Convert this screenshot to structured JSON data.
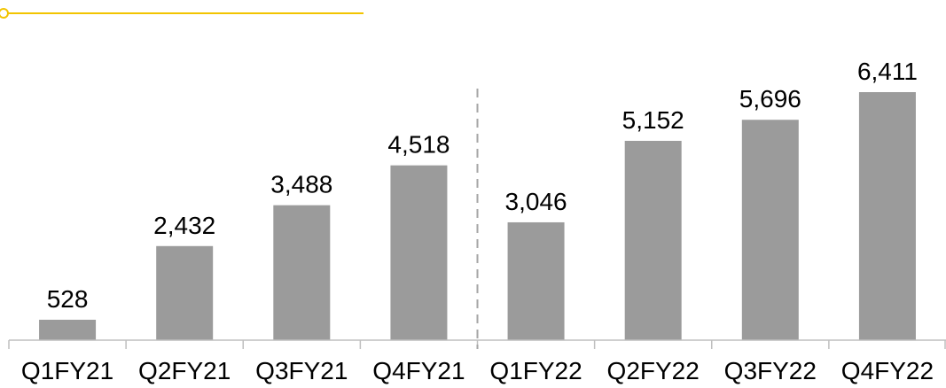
{
  "colors": {
    "bar": "#9b9b9b",
    "accent_line": "#f2c400",
    "axis": "#bfbfbf",
    "divider": "#a6a6a6",
    "text": "#000000"
  },
  "chart_data": {
    "type": "bar",
    "categories": [
      "Q1FY21",
      "Q2FY21",
      "Q3FY21",
      "Q4FY21",
      "Q1FY22",
      "Q2FY22",
      "Q3FY22",
      "Q4FY22"
    ],
    "values": [
      528,
      2432,
      3488,
      4518,
      3046,
      5152,
      5696,
      6411
    ],
    "value_labels": [
      "528",
      "2,432",
      "3,488",
      "4,518",
      "3,046",
      "5,152",
      "5,696",
      "6,411"
    ],
    "ylim": [
      0,
      7000
    ],
    "grid": false,
    "divider_after_category": "Q4FY21"
  }
}
